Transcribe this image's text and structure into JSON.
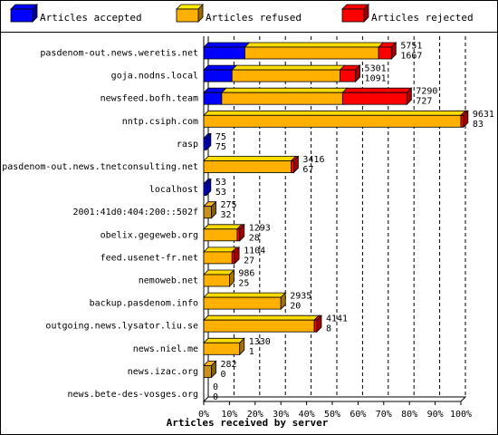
{
  "chart_data": {
    "type": "bar",
    "stacked": true,
    "orientation": "horizontal",
    "xlabel": "Articles received by server",
    "xticks": [
      "0%",
      "10%",
      "20%",
      "30%",
      "40%",
      "50%",
      "60%",
      "70%",
      "80%",
      "90%",
      "100%"
    ],
    "xlim_percent": [
      0,
      100
    ],
    "grid": true,
    "legend_position": "top",
    "series": [
      {
        "name": "Articles accepted",
        "color": "#0000ff"
      },
      {
        "name": "Articles refused",
        "color": "#ffb000"
      },
      {
        "name": "Articles rejected",
        "color": "#ff0000"
      }
    ],
    "categories": [
      "pasdenom-out.news.weretis.net",
      "goja.nodns.local",
      "newsfeed.bofh.team",
      "nntp.csiph.com",
      "rasp",
      "pasdenom-out.news.tnetconsulting.net",
      "localhost",
      "2001:41d0:404:200::502f",
      "obelix.gegeweb.org",
      "feed.usenet-fr.net",
      "nemoweb.net",
      "backup.pasdenom.info",
      "outgoing.news.lysator.liu.se",
      "news.niel.me",
      "news.izac.org",
      "news.bete-des-vosges.org"
    ],
    "labels_top": [
      "5751",
      "5301",
      "7290",
      "9631",
      "75",
      "3416",
      "53",
      "275",
      "1293",
      "1104",
      "986",
      "2935",
      "4141",
      "1330",
      "282",
      "0"
    ],
    "labels_bottom": [
      "1667",
      "1091",
      "727",
      "83",
      "75",
      "67",
      "53",
      "32",
      "28",
      "27",
      "25",
      "20",
      "8",
      "1",
      "0",
      "0"
    ],
    "segments_percent": [
      {
        "accepted": 16,
        "refused": 52,
        "rejected": 5
      },
      {
        "accepted": 11,
        "refused": 42,
        "rejected": 6
      },
      {
        "accepted": 7,
        "refused": 47,
        "rejected": 25
      },
      {
        "accepted": 0,
        "refused": 100,
        "rejected": 1
      },
      {
        "accepted": 1,
        "refused": 0,
        "rejected": 0
      },
      {
        "accepted": 0,
        "refused": 34,
        "rejected": 1
      },
      {
        "accepted": 1,
        "refused": 0,
        "rejected": 0
      },
      {
        "accepted": 0,
        "refused": 3,
        "rejected": 0,
        "darker": true
      },
      {
        "accepted": 0,
        "refused": 13,
        "rejected": 1
      },
      {
        "accepted": 0,
        "refused": 11,
        "rejected": 1
      },
      {
        "accepted": 0,
        "refused": 10,
        "rejected": 0
      },
      {
        "accepted": 0,
        "refused": 30,
        "rejected": 0
      },
      {
        "accepted": 0,
        "refused": 43,
        "rejected": 1
      },
      {
        "accepted": 0,
        "refused": 14,
        "rejected": 0
      },
      {
        "accepted": 0,
        "refused": 3,
        "rejected": 0,
        "darker": true
      },
      {
        "accepted": 0,
        "refused": 0,
        "rejected": 0
      }
    ]
  }
}
